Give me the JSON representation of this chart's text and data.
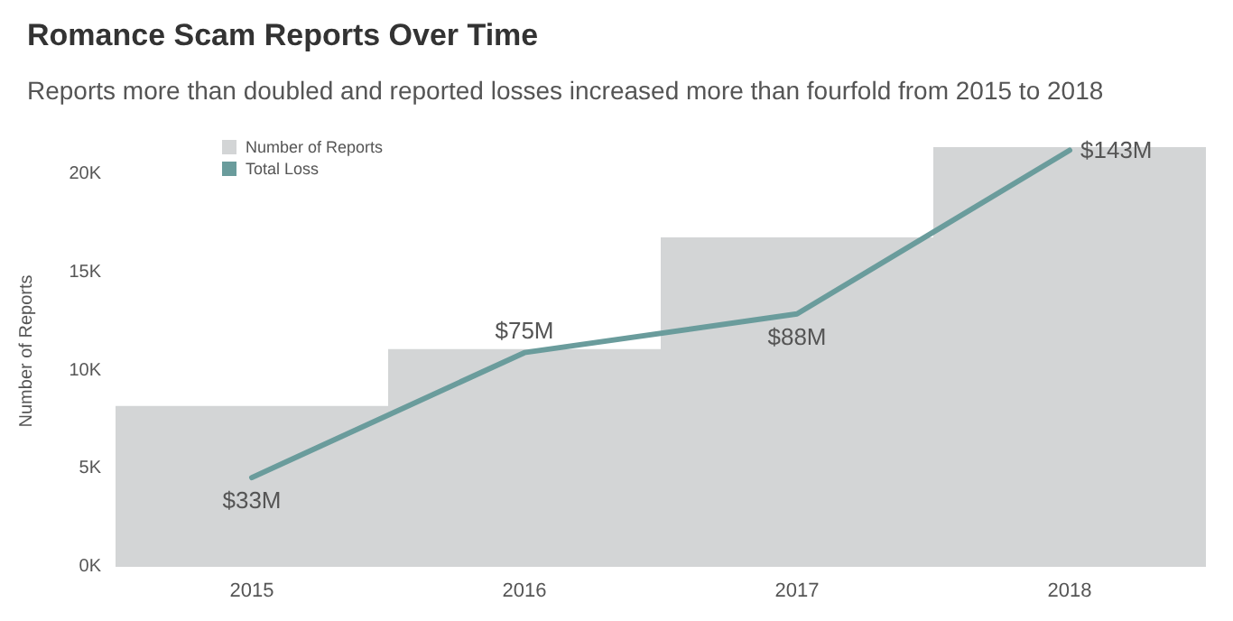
{
  "chart_data": {
    "type": "bar",
    "title": "Romance Scam Reports Over Time",
    "subtitle": "Reports more than doubled and reported losses increased more than fourfold from 2015 to 2018",
    "ylabel": "Number of Reports",
    "categories": [
      "2015",
      "2016",
      "2017",
      "2018"
    ],
    "series": [
      {
        "name": "Number of Reports",
        "color": "#d3d5d6",
        "values": [
          8200,
          11100,
          16800,
          21400
        ]
      },
      {
        "name": "Total Loss",
        "type": "line",
        "axis": "y2",
        "color": "#6a9c9c",
        "values": [
          33,
          75,
          88,
          143
        ],
        "value_labels": [
          "$33M",
          "$75M",
          "$88M",
          "$143M"
        ]
      }
    ],
    "ylim": [
      0,
      22000
    ],
    "yticks": [
      {
        "value": 0,
        "label": "0K"
      },
      {
        "value": 5000,
        "label": "5K"
      },
      {
        "value": 10000,
        "label": "10K"
      },
      {
        "value": 15000,
        "label": "15K"
      },
      {
        "value": 20000,
        "label": "20K"
      }
    ],
    "y2lim": [
      3,
      148
    ],
    "grid": false,
    "legend": "top left",
    "marker": "none"
  }
}
